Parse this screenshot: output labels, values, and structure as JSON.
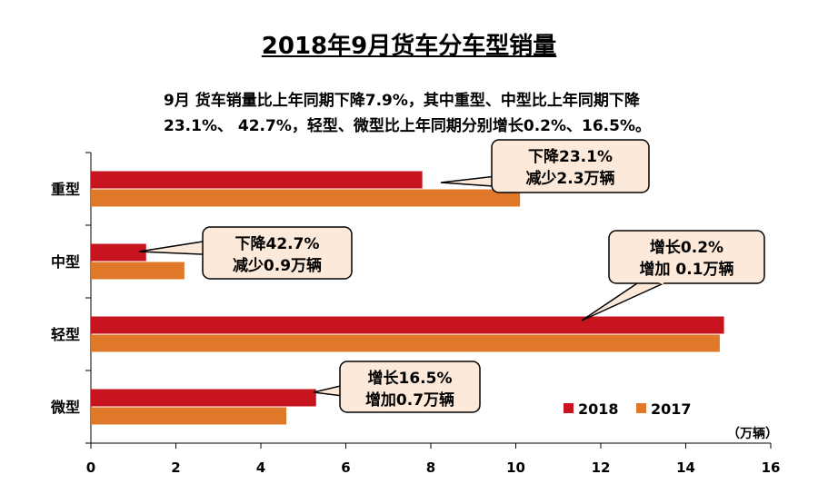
{
  "chart_data": {
    "type": "bar",
    "orientation": "horizontal",
    "title": "2018年9月货车分车型销量",
    "subtitle_lines": [
      "9月 货车销量比上年同期下降7.9%，其中重型、中型比上年同期下降",
      "23.1%、 42.7%，轻型、微型比上年同期分别增长0.2%、16.5%。"
    ],
    "categories": [
      "重型",
      "中型",
      "轻型",
      "微型"
    ],
    "series": [
      {
        "name": "2018",
        "color": "#c8141e",
        "values": [
          7.8,
          1.3,
          14.9,
          5.3
        ]
      },
      {
        "name": "2017",
        "color": "#e0782a",
        "values": [
          10.1,
          2.2,
          14.8,
          4.6
        ]
      }
    ],
    "unit_label": "（万辆）",
    "xlim": [
      0,
      16
    ],
    "xticks": [
      0,
      2,
      4,
      6,
      8,
      10,
      12,
      14,
      16
    ],
    "grid": false,
    "legend_position": "bottom-right",
    "annotations": [
      {
        "category": "重型",
        "lines": [
          "下降23.1%",
          "减少2.3万辆"
        ]
      },
      {
        "category": "中型",
        "lines": [
          "下降42.7%",
          "减少0.9万辆"
        ]
      },
      {
        "category": "轻型",
        "lines": [
          "增长0.2%",
          "增加 0.1万辆"
        ]
      },
      {
        "category": "微型",
        "lines": [
          "增长16.5%",
          "增加0.7万辆"
        ]
      }
    ],
    "callout_fill": "#fde9d9"
  }
}
